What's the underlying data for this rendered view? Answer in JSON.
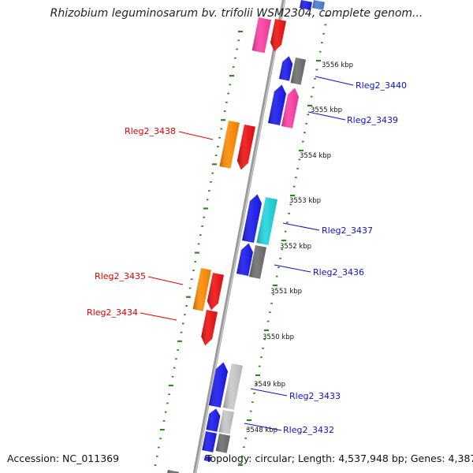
{
  "title": "Rhizobium leguminosarum bv. trifolii WSM2304, complete genom...",
  "footer": {
    "accession": "Accession: NC_011369",
    "topology": "Topology: circular; Length: 4,537,948 bp; Genes: 4,387"
  },
  "colors": {
    "backbone": "#8c8c8c",
    "tick": "#2a8a1e",
    "forward_label": "#1010c8",
    "reverse_label": "#e00000",
    "blue": "#1a1aee",
    "red": "#ee1111",
    "orange": "#ff8c00",
    "magenta": "#ff3fa7",
    "cyan": "#1fd6dc",
    "grey": "#6f6f6f",
    "light_grey": "#c8c8c8"
  },
  "kbp_ticks": [
    "3556 kbp",
    "3555 kbp",
    "3554 kbp",
    "3553 kbp",
    "3552 kbp",
    "3551 kbp",
    "3550 kbp",
    "3549 kbp",
    "3548 kbp"
  ],
  "genes": [
    {
      "name": "Rleg2_3440",
      "strand": "forward",
      "label": "Rleg2_3440"
    },
    {
      "name": "Rleg2_3439",
      "strand": "forward",
      "label": "Rleg2_3439"
    },
    {
      "name": "Rleg2_3438",
      "strand": "reverse",
      "label": "Rleg2_3438"
    },
    {
      "name": "Rleg2_3437",
      "strand": "forward",
      "label": "Rleg2_3437"
    },
    {
      "name": "Rleg2_3436",
      "strand": "forward",
      "label": "Rleg2_3436"
    },
    {
      "name": "Rleg2_3435",
      "strand": "reverse",
      "label": "Rleg2_3435"
    },
    {
      "name": "Rleg2_3434",
      "strand": "reverse",
      "label": "Rleg2_3434"
    },
    {
      "name": "Rleg2_3433",
      "strand": "forward",
      "label": "Rleg2_3433"
    },
    {
      "name": "Rleg2_3432",
      "strand": "forward",
      "label": "Rleg2_3432"
    }
  ]
}
